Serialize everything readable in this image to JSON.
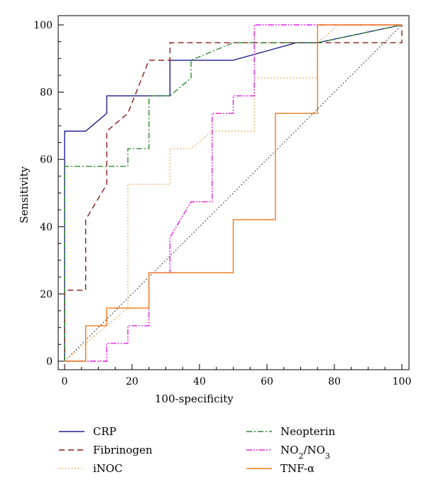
{
  "chart_data": {
    "type": "line",
    "title": "",
    "xlabel": "100-specificity",
    "ylabel": "Sensitivity",
    "xlim": [
      0,
      100
    ],
    "ylim": [
      0,
      100
    ],
    "x_ticks": [
      0,
      20,
      40,
      60,
      80,
      100
    ],
    "y_ticks": [
      0,
      20,
      40,
      60,
      80,
      100
    ],
    "x_tick_labels": [
      "0",
      "20",
      "40",
      "60",
      "80",
      "100"
    ],
    "y_tick_labels": [
      "0",
      "20",
      "40",
      "60",
      "80",
      "100"
    ],
    "grid": false,
    "legend_position": "bottom",
    "reference_line": {
      "from": [
        0,
        0
      ],
      "to": [
        100,
        100
      ],
      "color": "#000000",
      "style": "dotted"
    },
    "series": [
      {
        "name": "CRP",
        "color": "#1f1f8f",
        "style": "solid",
        "points": [
          [
            0,
            0
          ],
          [
            0,
            68.4
          ],
          [
            6.25,
            68.4
          ],
          [
            12.5,
            73.7
          ],
          [
            12.5,
            78.9
          ],
          [
            31.25,
            78.9
          ],
          [
            31.25,
            89.5
          ],
          [
            50,
            89.5
          ],
          [
            68.75,
            94.7
          ],
          [
            75,
            94.7
          ],
          [
            100,
            100
          ]
        ]
      },
      {
        "name": "Fibrinogen",
        "color": "#8b1a1a",
        "style": "dashed",
        "points": [
          [
            0,
            0
          ],
          [
            0,
            21.1
          ],
          [
            6.25,
            21.1
          ],
          [
            6.25,
            42.1
          ],
          [
            12.5,
            52.6
          ],
          [
            12.5,
            68.4
          ],
          [
            18.75,
            73.7
          ],
          [
            25,
            89.5
          ],
          [
            31.25,
            89.5
          ],
          [
            31.25,
            94.7
          ],
          [
            100,
            94.7
          ],
          [
            100,
            100
          ]
        ]
      },
      {
        "name": "iNOC",
        "color": "#f0a040",
        "style": "dotted",
        "points": [
          [
            0,
            0
          ],
          [
            18.75,
            15.8
          ],
          [
            18.75,
            52.6
          ],
          [
            31.25,
            52.6
          ],
          [
            31.25,
            63.2
          ],
          [
            37.5,
            63.2
          ],
          [
            43.75,
            68.4
          ],
          [
            56.25,
            68.4
          ],
          [
            56.25,
            84.2
          ],
          [
            75,
            84.2
          ],
          [
            75,
            94.7
          ],
          [
            81.25,
            100
          ],
          [
            100,
            100
          ]
        ]
      },
      {
        "name": "Neopterin",
        "color": "#2e8b2e",
        "style": "dashdot",
        "points": [
          [
            0,
            0
          ],
          [
            0,
            57.9
          ],
          [
            18.75,
            57.9
          ],
          [
            18.75,
            63.2
          ],
          [
            25,
            63.2
          ],
          [
            25,
            78.9
          ],
          [
            31.25,
            78.9
          ],
          [
            37.5,
            84.2
          ],
          [
            37.5,
            89.5
          ],
          [
            50,
            94.7
          ],
          [
            75,
            94.7
          ],
          [
            100,
            100
          ]
        ]
      },
      {
        "name": "NO2/NO3",
        "color": "#e020e0",
        "style": "dashdotdot",
        "points": [
          [
            0,
            0
          ],
          [
            12.5,
            0
          ],
          [
            12.5,
            5.3
          ],
          [
            18.75,
            5.3
          ],
          [
            18.75,
            10.5
          ],
          [
            25,
            10.5
          ],
          [
            25,
            26.3
          ],
          [
            31.25,
            26.3
          ],
          [
            31.25,
            36.8
          ],
          [
            37.5,
            47.4
          ],
          [
            43.75,
            47.4
          ],
          [
            43.75,
            73.7
          ],
          [
            50,
            73.7
          ],
          [
            50,
            78.9
          ],
          [
            56.25,
            78.9
          ],
          [
            56.25,
            100
          ],
          [
            75,
            100
          ],
          [
            100,
            100
          ]
        ]
      },
      {
        "name": "TNF-α",
        "color": "#f07818",
        "style": "solid",
        "points": [
          [
            0,
            0
          ],
          [
            6.25,
            0
          ],
          [
            6.25,
            10.5
          ],
          [
            12.5,
            10.5
          ],
          [
            12.5,
            15.8
          ],
          [
            25,
            15.8
          ],
          [
            25,
            26.3
          ],
          [
            50,
            26.3
          ],
          [
            50,
            42.1
          ],
          [
            62.5,
            42.1
          ],
          [
            62.5,
            73.7
          ],
          [
            75,
            73.7
          ],
          [
            75,
            100
          ],
          [
            100,
            100
          ]
        ]
      }
    ]
  }
}
